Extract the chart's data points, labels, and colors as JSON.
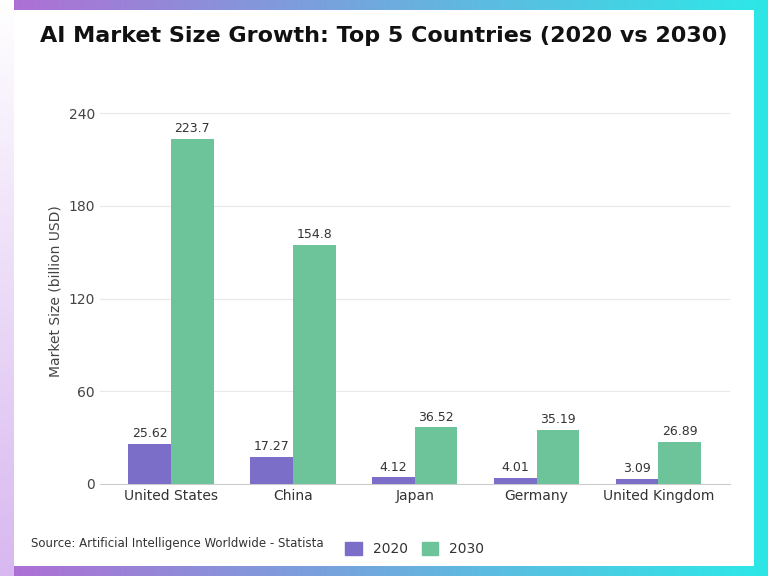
{
  "title": "AI Market Size Growth: Top 5 Countries (2020 vs 2030)",
  "ylabel": "Market Size (billion USD)",
  "source": "Source: Artificial Intelligence Worldwide - Statista",
  "countries": [
    "United States",
    "China",
    "Japan",
    "Germany",
    "United Kingdom"
  ],
  "values_2020": [
    25.62,
    17.27,
    4.12,
    4.01,
    3.09
  ],
  "values_2030": [
    223.7,
    154.8,
    36.52,
    35.19,
    26.89
  ],
  "color_2020": "#7b6ec8",
  "color_2030": "#6dc49a",
  "ylim": [
    0,
    250
  ],
  "yticks": [
    0,
    60,
    120,
    180,
    240
  ],
  "bar_width": 0.35,
  "title_fontsize": 16,
  "label_fontsize": 10,
  "tick_fontsize": 10,
  "annotation_fontsize": 9,
  "source_fontsize": 8.5,
  "legend_fontsize": 10,
  "background_color": "#ffffff"
}
